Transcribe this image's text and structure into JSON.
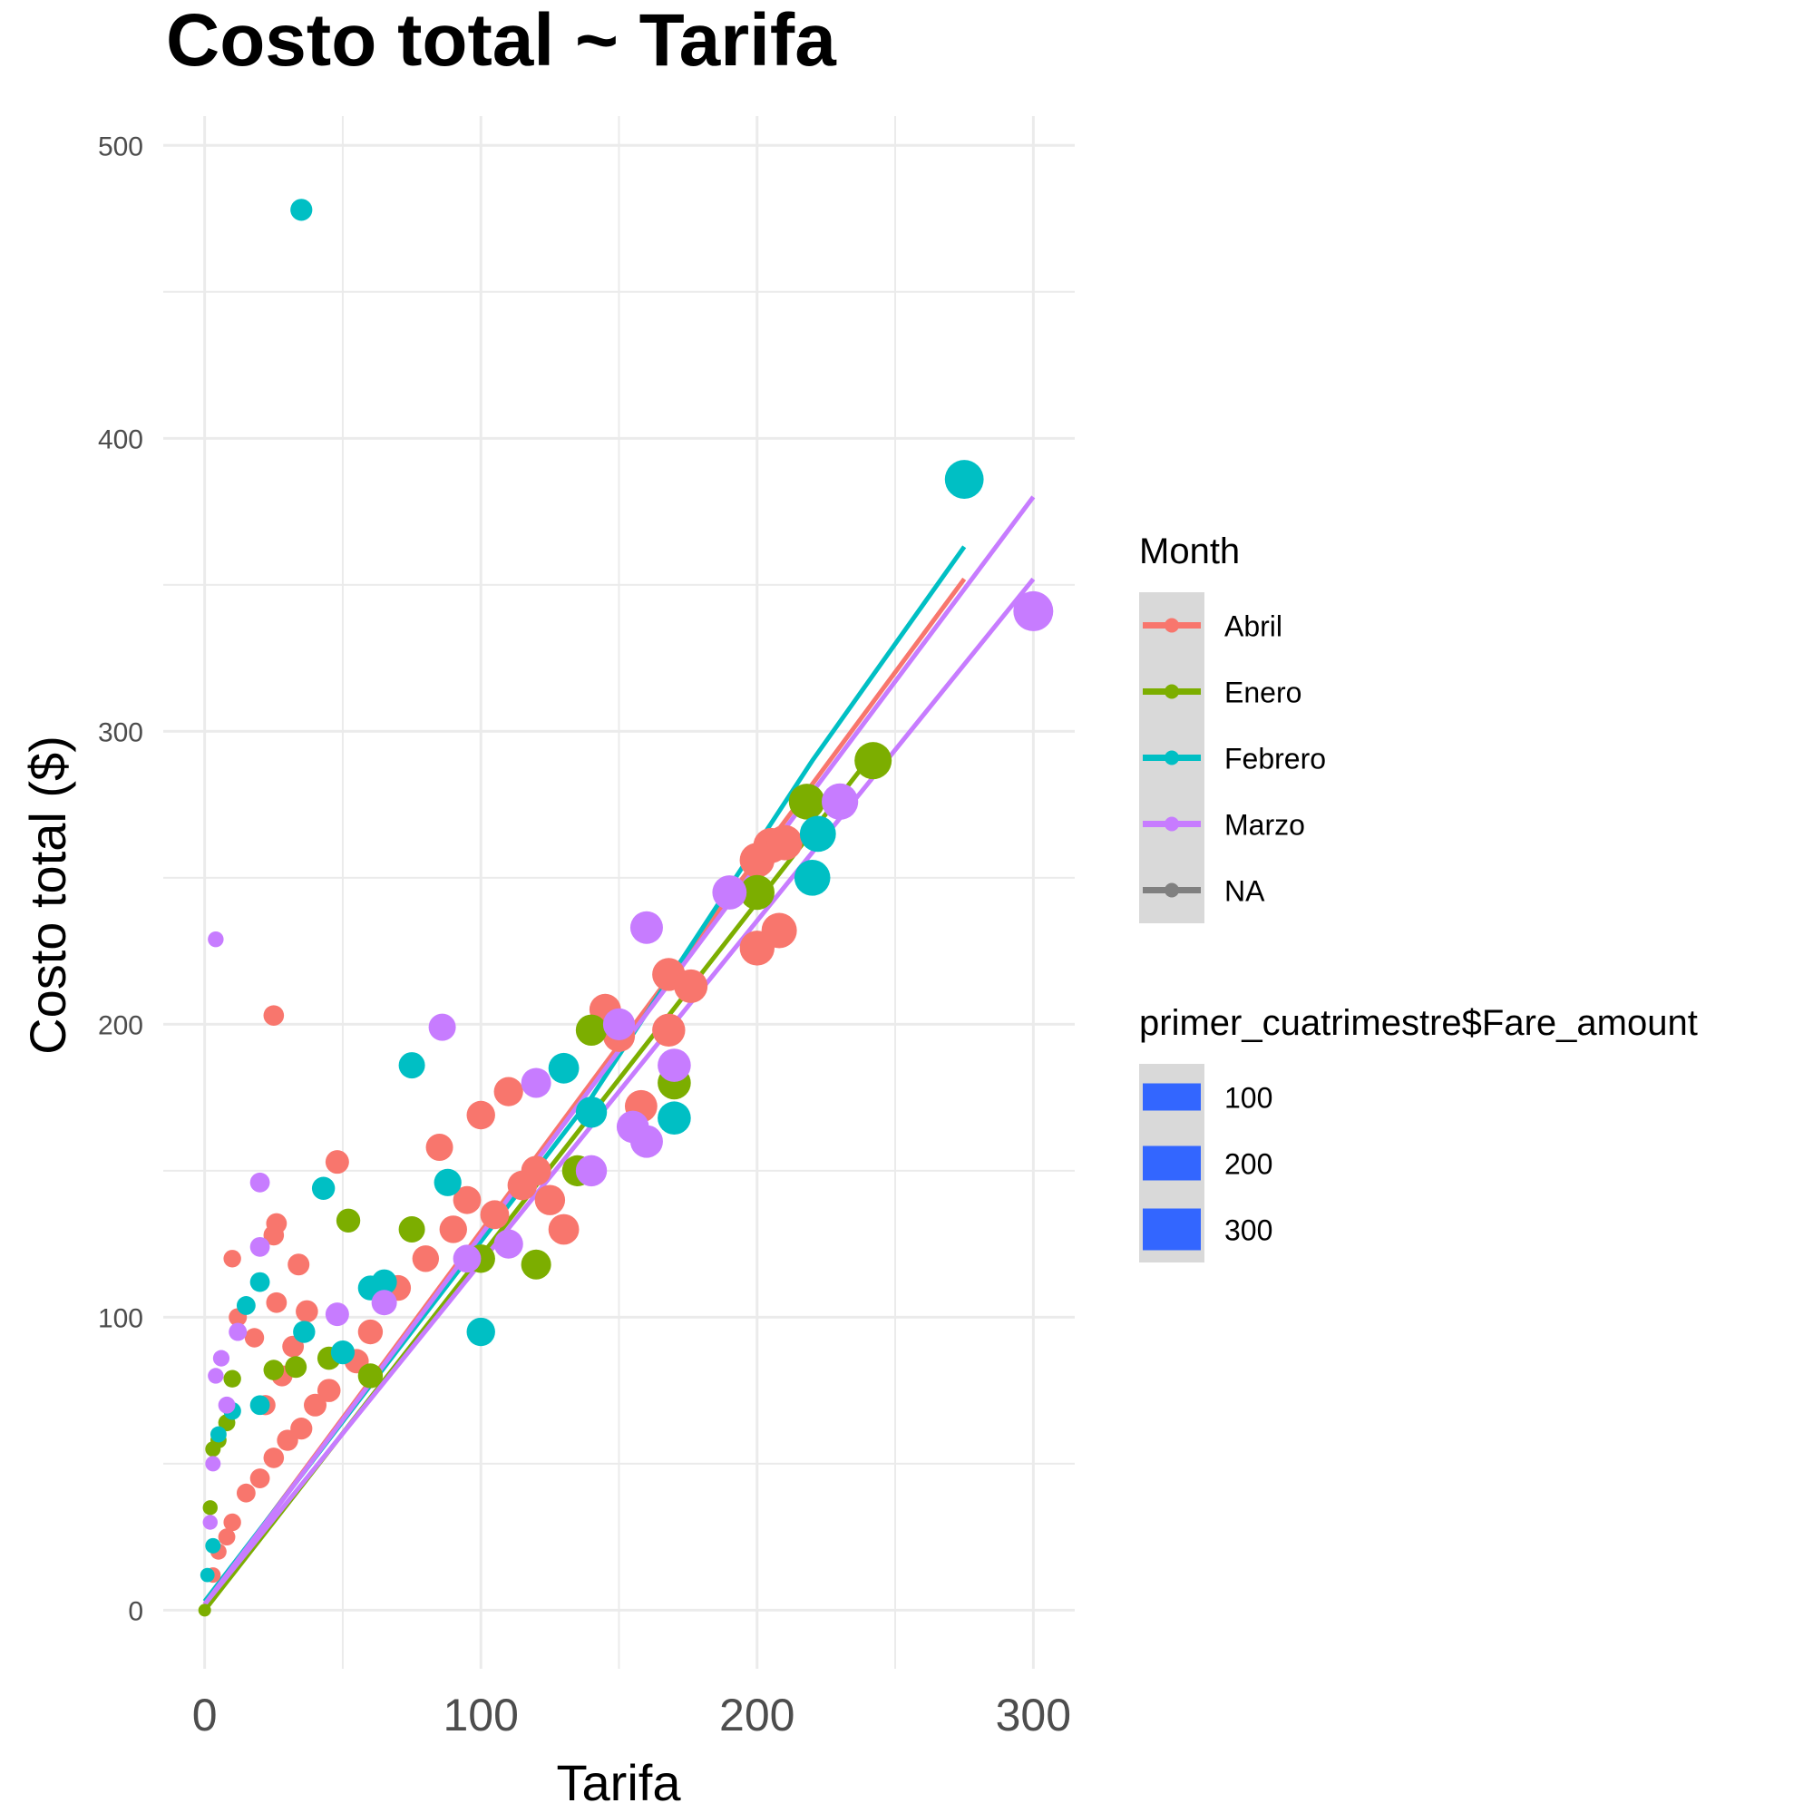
{
  "chart_data": {
    "type": "scatter",
    "title": "Costo total ~ Tarifa",
    "xlabel": "Tarifa",
    "ylabel": "Costo total ($)",
    "xlim": [
      -15,
      315
    ],
    "ylim": [
      -20,
      510
    ],
    "x_ticks": [
      0,
      100,
      200,
      300
    ],
    "y_ticks": [
      0,
      100,
      200,
      300,
      400,
      500
    ],
    "grid": true,
    "legend_placement": "right",
    "color_legend": {
      "title": "Month",
      "entries": [
        {
          "label": "Abril",
          "color": "#F8766D"
        },
        {
          "label": "Enero",
          "color": "#7CAE00"
        },
        {
          "label": "Febrero",
          "color": "#00BFC4"
        },
        {
          "label": "Marzo",
          "color": "#C77CFF"
        },
        {
          "label": "NA",
          "color": "#808080"
        }
      ]
    },
    "size_legend": {
      "title": "primer_cuatrimestre$Fare_amount",
      "entries": [
        {
          "label": "100",
          "value": 100
        },
        {
          "label": "200",
          "value": 200
        },
        {
          "label": "300",
          "value": 300
        }
      ],
      "color": "#3366FF"
    },
    "trend_lines": [
      {
        "name": "Abril",
        "color": "#F8766D",
        "points": [
          [
            0,
            2
          ],
          [
            275,
            352
          ]
        ]
      },
      {
        "name": "Enero",
        "color": "#7CAE00",
        "points": [
          [
            0,
            0
          ],
          [
            240,
            290
          ]
        ]
      },
      {
        "name": "Febrero",
        "color": "#00BFC4",
        "points": [
          [
            0,
            3
          ],
          [
            140,
            175
          ],
          [
            220,
            290
          ],
          [
            275,
            363
          ]
        ]
      },
      {
        "name": "Marzo",
        "color": "#C77CFF",
        "points": [
          [
            0,
            2
          ],
          [
            300,
            380
          ]
        ]
      },
      {
        "name": "Marzo",
        "color": "#C77CFF",
        "points": [
          [
            0,
            2
          ],
          [
            300,
            352
          ]
        ]
      }
    ],
    "series": [
      {
        "name": "Abril",
        "color": "#F8766D",
        "points": [
          [
            25,
            203
          ],
          [
            48,
            153
          ],
          [
            10,
            120
          ],
          [
            26,
            132
          ],
          [
            25,
            128
          ],
          [
            34,
            118
          ],
          [
            26,
            105
          ],
          [
            37,
            102
          ],
          [
            85,
            158
          ],
          [
            100,
            169
          ],
          [
            110,
            177
          ],
          [
            145,
            205
          ],
          [
            150,
            196
          ],
          [
            158,
            172
          ],
          [
            168,
            217
          ],
          [
            168,
            198
          ],
          [
            176,
            213
          ],
          [
            200,
            256
          ],
          [
            205,
            261
          ],
          [
            210,
            262
          ],
          [
            200,
            226
          ],
          [
            208,
            232
          ],
          [
            130,
            130
          ],
          [
            120,
            150
          ],
          [
            95,
            140
          ],
          [
            90,
            130
          ],
          [
            80,
            120
          ],
          [
            70,
            110
          ],
          [
            60,
            95
          ],
          [
            55,
            85
          ],
          [
            45,
            75
          ],
          [
            40,
            70
          ],
          [
            35,
            62
          ],
          [
            30,
            58
          ],
          [
            25,
            52
          ],
          [
            20,
            45
          ],
          [
            15,
            40
          ],
          [
            10,
            30
          ],
          [
            8,
            25
          ],
          [
            5,
            20
          ],
          [
            3,
            12
          ],
          [
            12,
            100
          ],
          [
            18,
            93
          ],
          [
            22,
            70
          ],
          [
            28,
            80
          ],
          [
            32,
            90
          ],
          [
            105,
            135
          ],
          [
            115,
            145
          ],
          [
            125,
            140
          ]
        ]
      },
      {
        "name": "Enero",
        "color": "#7CAE00",
        "points": [
          [
            242,
            290
          ],
          [
            218,
            276
          ],
          [
            52,
            133
          ],
          [
            75,
            130
          ],
          [
            140,
            198
          ],
          [
            120,
            118
          ],
          [
            170,
            180
          ],
          [
            10,
            79
          ],
          [
            25,
            82
          ],
          [
            33,
            83
          ],
          [
            45,
            86
          ],
          [
            8,
            64
          ],
          [
            5,
            58
          ],
          [
            3,
            55
          ],
          [
            2,
            35
          ],
          [
            0,
            0
          ],
          [
            135,
            150
          ],
          [
            200,
            245
          ],
          [
            60,
            80
          ],
          [
            100,
            120
          ]
        ]
      },
      {
        "name": "Febrero",
        "color": "#00BFC4",
        "points": [
          [
            35,
            478
          ],
          [
            275,
            386
          ],
          [
            220,
            250
          ],
          [
            222,
            265
          ],
          [
            75,
            186
          ],
          [
            43,
            144
          ],
          [
            88,
            146
          ],
          [
            65,
            112
          ],
          [
            20,
            112
          ],
          [
            15,
            104
          ],
          [
            36,
            95
          ],
          [
            50,
            88
          ],
          [
            20,
            70
          ],
          [
            10,
            68
          ],
          [
            5,
            60
          ],
          [
            3,
            22
          ],
          [
            1,
            12
          ],
          [
            130,
            185
          ],
          [
            140,
            170
          ],
          [
            170,
            168
          ],
          [
            100,
            95
          ],
          [
            60,
            110
          ]
        ]
      },
      {
        "name": "Marzo",
        "color": "#C77CFF",
        "points": [
          [
            300,
            341
          ],
          [
            4,
            229
          ],
          [
            86,
            199
          ],
          [
            160,
            233
          ],
          [
            120,
            180
          ],
          [
            20,
            146
          ],
          [
            48,
            101
          ],
          [
            20,
            124
          ],
          [
            12,
            95
          ],
          [
            6,
            86
          ],
          [
            4,
            80
          ],
          [
            8,
            70
          ],
          [
            3,
            50
          ],
          [
            2,
            30
          ],
          [
            190,
            245
          ],
          [
            230,
            276
          ],
          [
            170,
            186
          ],
          [
            150,
            200
          ],
          [
            155,
            165
          ],
          [
            160,
            160
          ],
          [
            140,
            150
          ],
          [
            110,
            125
          ],
          [
            95,
            120
          ],
          [
            65,
            105
          ]
        ]
      }
    ]
  }
}
